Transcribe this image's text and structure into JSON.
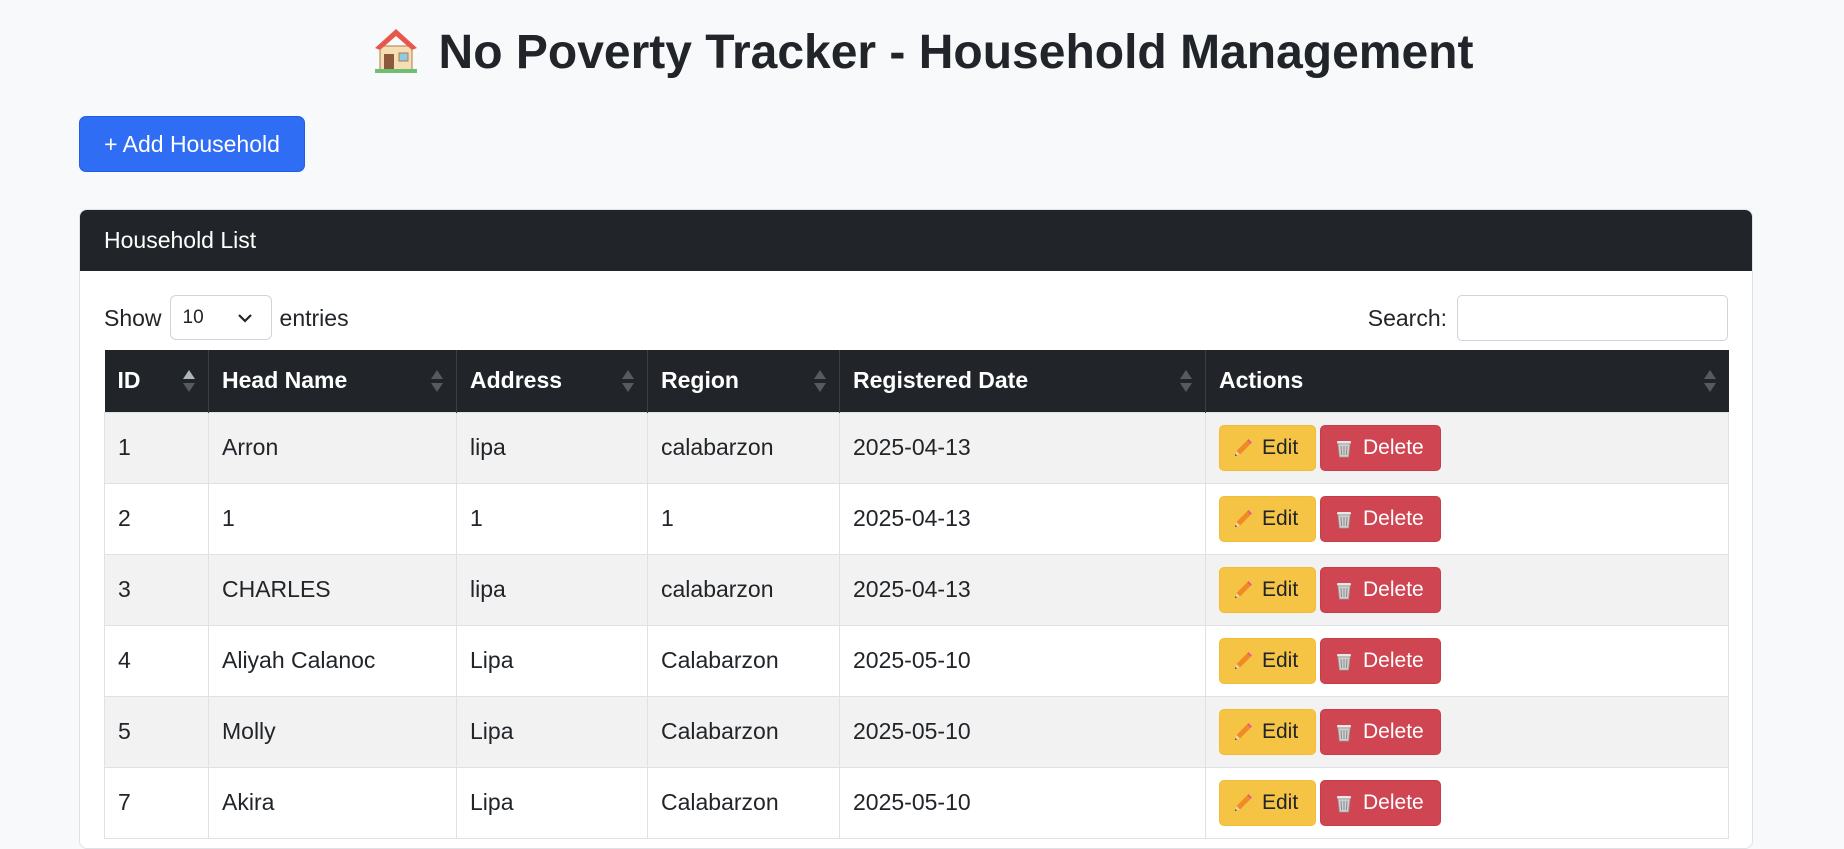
{
  "page": {
    "title": "No Poverty Tracker - Household Management",
    "title_icon": "house-icon"
  },
  "toolbar": {
    "add_label": "+ Add Household"
  },
  "card": {
    "header": "Household List"
  },
  "length": {
    "show_label": "Show",
    "value": "10",
    "entries_label": "entries"
  },
  "search": {
    "label": "Search:",
    "value": "",
    "placeholder": ""
  },
  "table": {
    "columns": [
      "ID",
      "Head Name",
      "Address",
      "Region",
      "Registered Date",
      "Actions"
    ],
    "edit_label": "Edit",
    "delete_label": "Delete",
    "rows": [
      {
        "id": "1",
        "head_name": "Arron",
        "address": "lipa",
        "region": "calabarzon",
        "date": "2025-04-13"
      },
      {
        "id": "2",
        "head_name": "1",
        "address": "1",
        "region": "1",
        "date": "2025-04-13"
      },
      {
        "id": "3",
        "head_name": "CHARLES",
        "address": "lipa",
        "region": "calabarzon",
        "date": "2025-04-13"
      },
      {
        "id": "4",
        "head_name": "Aliyah Calanoc",
        "address": "Lipa",
        "region": "Calabarzon",
        "date": "2025-05-10"
      },
      {
        "id": "5",
        "head_name": "Molly",
        "address": "Lipa",
        "region": "Calabarzon",
        "date": "2025-05-10"
      },
      {
        "id": "7",
        "head_name": "Akira",
        "address": "Lipa",
        "region": "Calabarzon",
        "date": "2025-05-10"
      }
    ]
  },
  "colors": {
    "primary": "#2f6df5",
    "dark": "#212529",
    "warning": "#f5c445",
    "danger": "#cf4652"
  }
}
